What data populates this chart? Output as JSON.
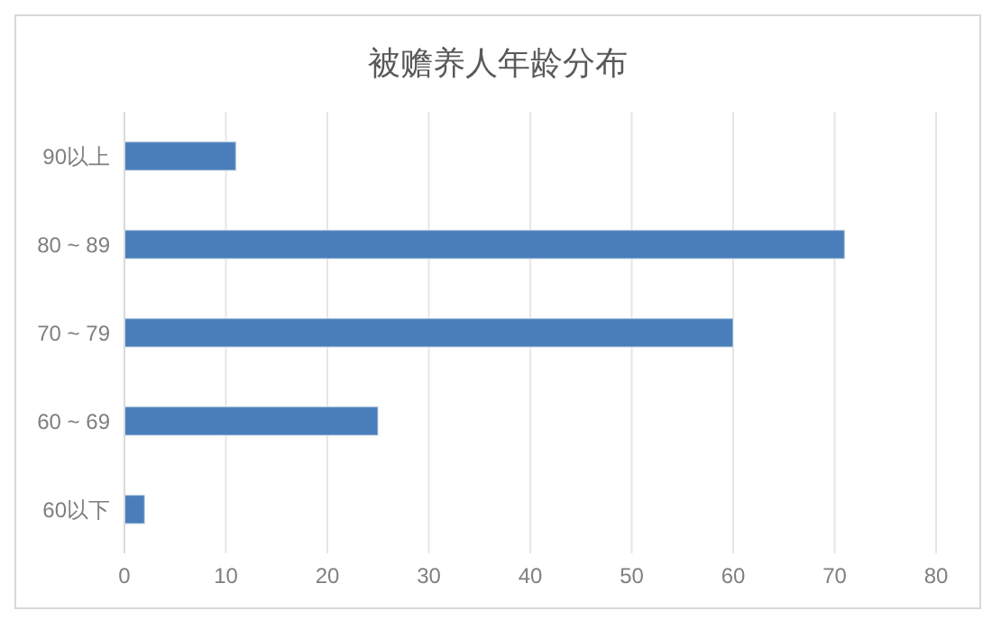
{
  "chart_data": {
    "type": "bar",
    "title": "被赡养人年龄分布",
    "orientation": "horizontal",
    "categories": [
      "90以上",
      "80 ~ 89",
      "70 ~ 79",
      "60 ~ 69",
      "60以下"
    ],
    "values": [
      11,
      71,
      60,
      25,
      2
    ],
    "color": "#4a7ebb",
    "xlim": [
      0,
      80
    ],
    "xticks": [
      0,
      10,
      20,
      30,
      40,
      50,
      60,
      70,
      80
    ],
    "grid": "x"
  }
}
